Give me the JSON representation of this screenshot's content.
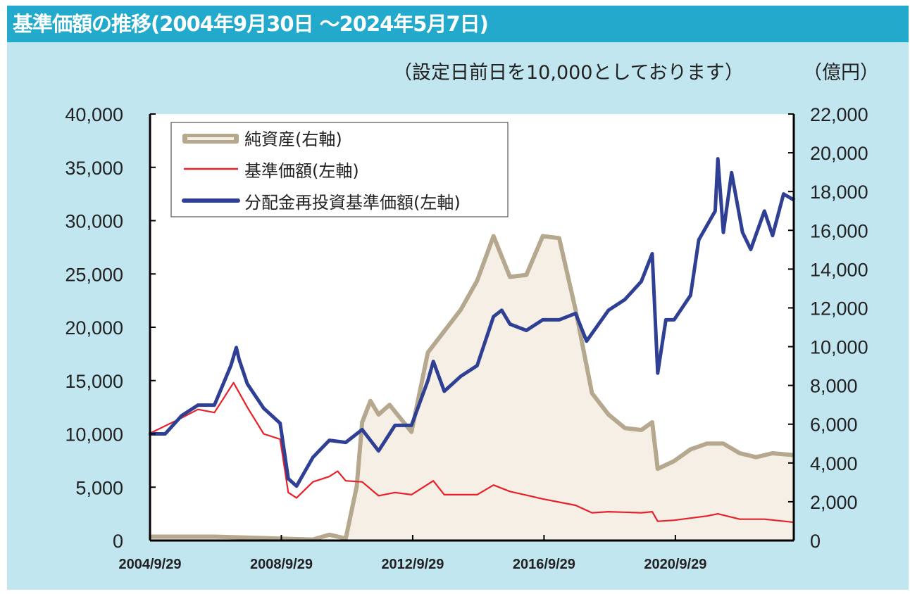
{
  "title": "基準価額の推移(2004年9月30日 ～2024年5月7日)",
  "notes": {
    "base_note": "（設定日前日を10,000としております）",
    "right_unit": "（億円）"
  },
  "colors": {
    "title_bar": "#22a9cc",
    "panel": "#c2e6f0",
    "net_assets": "#b5a88e",
    "net_assets_fill": "#f5efe6",
    "nav": "#e8202a",
    "reinvested_nav": "#2e3f94"
  },
  "chart_data": {
    "type": "line",
    "x_ticks": [
      "2004/9/29",
      "2008/9/29",
      "2012/9/29",
      "2016/9/29",
      "2020/9/29"
    ],
    "x_range": [
      "2004/9/29",
      "2024/5/7"
    ],
    "y_left": {
      "range": [
        0,
        40000
      ],
      "ticks": [
        "0",
        "5,000",
        "10,000",
        "15,000",
        "20,000",
        "25,000",
        "30,000",
        "35,000",
        "40,000"
      ]
    },
    "y_right": {
      "range": [
        0,
        22000
      ],
      "ticks": [
        "0",
        "2,000",
        "4,000",
        "6,000",
        "8,000",
        "10,000",
        "12,000",
        "14,000",
        "16,000",
        "18,000",
        "20,000",
        "22,000"
      ]
    },
    "grid": false,
    "legend_placement": "top-left",
    "series": [
      {
        "name": "純資産(右軸)",
        "axis": "right",
        "style": "area",
        "points": [
          [
            "2004/9",
            200
          ],
          [
            "2006/9",
            200
          ],
          [
            "2008/9",
            100
          ],
          [
            "2009/9",
            50
          ],
          [
            "2010/3",
            300
          ],
          [
            "2010/9",
            100
          ],
          [
            "2011/1",
            2800
          ],
          [
            "2011/3",
            6100
          ],
          [
            "2011/6",
            7200
          ],
          [
            "2011/9",
            6500
          ],
          [
            "2012/1",
            7000
          ],
          [
            "2012/9",
            5600
          ],
          [
            "2013/3",
            9700
          ],
          [
            "2013/9",
            10800
          ],
          [
            "2014/3",
            11900
          ],
          [
            "2014/9",
            13400
          ],
          [
            "2015/3",
            15700
          ],
          [
            "2015/9",
            13600
          ],
          [
            "2016/3",
            13700
          ],
          [
            "2016/9",
            15700
          ],
          [
            "2017/3",
            15600
          ],
          [
            "2017/9",
            11900
          ],
          [
            "2018/3",
            7600
          ],
          [
            "2018/9",
            6500
          ],
          [
            "2019/3",
            5800
          ],
          [
            "2019/9",
            5700
          ],
          [
            "2020/1",
            6100
          ],
          [
            "2020/3",
            3700
          ],
          [
            "2020/9",
            4100
          ],
          [
            "2021/3",
            4700
          ],
          [
            "2021/9",
            5000
          ],
          [
            "2022/3",
            5000
          ],
          [
            "2022/9",
            4500
          ],
          [
            "2023/3",
            4300
          ],
          [
            "2023/9",
            4500
          ],
          [
            "2024/5",
            4400
          ]
        ]
      },
      {
        "name": "基準価額(左軸)",
        "axis": "left",
        "style": "line",
        "points": [
          [
            "2004/9",
            10000
          ],
          [
            "2005/9",
            11500
          ],
          [
            "2006/3",
            12300
          ],
          [
            "2006/9",
            12000
          ],
          [
            "2007/4",
            14800
          ],
          [
            "2007/9",
            12500
          ],
          [
            "2008/3",
            10000
          ],
          [
            "2008/9",
            9500
          ],
          [
            "2008/12",
            4500
          ],
          [
            "2009/3",
            4000
          ],
          [
            "2009/9",
            5500
          ],
          [
            "2010/3",
            6000
          ],
          [
            "2010/6",
            6500
          ],
          [
            "2010/9",
            5600
          ],
          [
            "2011/3",
            5500
          ],
          [
            "2011/9",
            4200
          ],
          [
            "2012/3",
            4500
          ],
          [
            "2012/9",
            4300
          ],
          [
            "2013/5",
            5600
          ],
          [
            "2013/9",
            4300
          ],
          [
            "2014/9",
            4300
          ],
          [
            "2015/3",
            5200
          ],
          [
            "2015/9",
            4600
          ],
          [
            "2016/9",
            3900
          ],
          [
            "2017/9",
            3300
          ],
          [
            "2018/3",
            2600
          ],
          [
            "2018/9",
            2700
          ],
          [
            "2019/9",
            2600
          ],
          [
            "2020/1",
            2700
          ],
          [
            "2020/3",
            1800
          ],
          [
            "2020/9",
            1900
          ],
          [
            "2021/9",
            2300
          ],
          [
            "2022/1",
            2500
          ],
          [
            "2022/9",
            2000
          ],
          [
            "2023/6",
            2000
          ],
          [
            "2024/5",
            1700
          ]
        ]
      },
      {
        "name": "分配金再投資基準価額(左軸)",
        "axis": "left",
        "style": "line",
        "points": [
          [
            "2004/9",
            10000
          ],
          [
            "2005/3",
            10000
          ],
          [
            "2005/9",
            11700
          ],
          [
            "2006/3",
            12700
          ],
          [
            "2006/9",
            12700
          ],
          [
            "2007/3",
            16400
          ],
          [
            "2007/5",
            18100
          ],
          [
            "2007/6",
            17000
          ],
          [
            "2007/9",
            14700
          ],
          [
            "2008/3",
            12400
          ],
          [
            "2008/9",
            11000
          ],
          [
            "2008/12",
            5800
          ],
          [
            "2009/3",
            5100
          ],
          [
            "2009/9",
            7800
          ],
          [
            "2010/3",
            9400
          ],
          [
            "2010/9",
            9200
          ],
          [
            "2011/3",
            10400
          ],
          [
            "2011/9",
            8400
          ],
          [
            "2012/3",
            10800
          ],
          [
            "2012/9",
            10800
          ],
          [
            "2013/3",
            15000
          ],
          [
            "2013/5",
            16800
          ],
          [
            "2013/9",
            14000
          ],
          [
            "2014/3",
            15400
          ],
          [
            "2014/9",
            16400
          ],
          [
            "2015/3",
            21000
          ],
          [
            "2015/6",
            21600
          ],
          [
            "2015/9",
            20300
          ],
          [
            "2016/3",
            19700
          ],
          [
            "2016/9",
            20700
          ],
          [
            "2017/3",
            20700
          ],
          [
            "2017/9",
            21300
          ],
          [
            "2018/1",
            18700
          ],
          [
            "2018/9",
            21600
          ],
          [
            "2019/3",
            22600
          ],
          [
            "2019/9",
            24300
          ],
          [
            "2020/1",
            26900
          ],
          [
            "2020/3",
            15700
          ],
          [
            "2020/6",
            20700
          ],
          [
            "2020/9",
            20700
          ],
          [
            "2021/3",
            23000
          ],
          [
            "2021/6",
            28200
          ],
          [
            "2021/12",
            30900
          ],
          [
            "2022/1",
            35800
          ],
          [
            "2022/3",
            28900
          ],
          [
            "2022/6",
            34500
          ],
          [
            "2022/10",
            28900
          ],
          [
            "2023/1",
            27300
          ],
          [
            "2023/6",
            30900
          ],
          [
            "2023/9",
            28600
          ],
          [
            "2024/1",
            32500
          ],
          [
            "2024/5",
            31900
          ]
        ]
      }
    ]
  }
}
